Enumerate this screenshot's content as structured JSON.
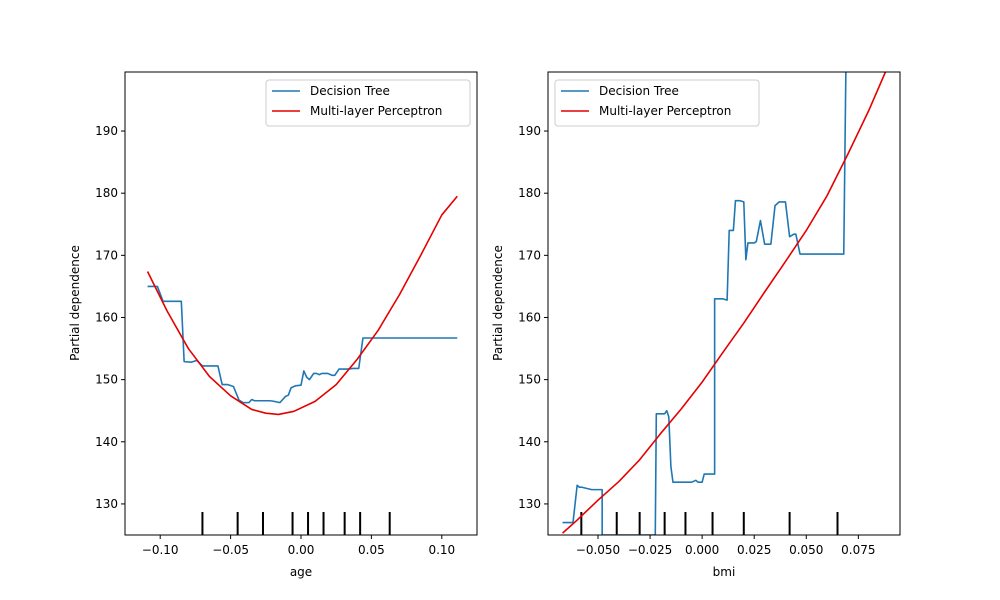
{
  "chart_data": [
    {
      "type": "line",
      "xlabel": "age",
      "ylabel": "Partial dependence",
      "xlim": [
        -0.125,
        0.125
      ],
      "ylim": [
        125,
        199.5
      ],
      "xticks": [
        -0.1,
        -0.05,
        0.0,
        0.05,
        0.1
      ],
      "xtick_labels": [
        "−0.10",
        "−0.05",
        "0.00",
        "0.05",
        "0.10"
      ],
      "yticks": [
        130,
        140,
        150,
        160,
        170,
        180,
        190
      ],
      "ytick_labels": [
        "130",
        "140",
        "150",
        "160",
        "170",
        "180",
        "190"
      ],
      "legend_position": "top-right",
      "grid": false,
      "deciles": [
        -0.07,
        -0.045,
        -0.027,
        -0.006,
        0.005,
        0.016,
        0.031,
        0.042,
        0.063
      ],
      "series": [
        {
          "name": "Decision Tree",
          "color": "#1f77b4",
          "x": [
            -0.109,
            -0.102,
            -0.098,
            -0.096,
            -0.091,
            -0.087,
            -0.085,
            -0.083,
            -0.078,
            -0.074,
            -0.07,
            -0.067,
            -0.063,
            -0.059,
            -0.056,
            -0.052,
            -0.048,
            -0.044,
            -0.041,
            -0.037,
            -0.035,
            -0.033,
            -0.03,
            -0.028,
            -0.025,
            -0.022,
            -0.019,
            -0.015,
            -0.011,
            -0.009,
            -0.007,
            -0.004,
            0.0,
            0.002,
            0.004,
            0.006,
            0.009,
            0.011,
            0.013,
            0.015,
            0.017,
            0.019,
            0.022,
            0.024,
            0.027,
            0.03,
            0.033,
            0.037,
            0.041,
            0.044,
            0.048,
            0.05,
            0.052,
            0.055,
            0.057,
            0.063,
            0.07,
            0.076,
            0.078,
            0.08,
            0.085,
            0.095,
            0.105,
            0.111
          ],
          "values": [
            165,
            165,
            162.6,
            162.6,
            162.6,
            162.6,
            162.6,
            152.9,
            152.8,
            153.1,
            152.2,
            152.2,
            152.2,
            152.2,
            149.2,
            149.2,
            148.9,
            146.7,
            146.3,
            146.3,
            146.8,
            146.6,
            146.6,
            146.6,
            146.6,
            146.6,
            146.5,
            146.3,
            147.3,
            147.5,
            148.7,
            149.0,
            149.1,
            151.4,
            150.4,
            150.0,
            151.0,
            151.0,
            150.8,
            151.0,
            151.0,
            151.0,
            150.7,
            150.7,
            151.7,
            151.7,
            151.7,
            151.8,
            151.8,
            156.7,
            156.7,
            156.7,
            156.7,
            156.7,
            156.7,
            156.7,
            156.7,
            156.7,
            156.7,
            156.7,
            156.7,
            156.7,
            156.7,
            156.7
          ]
        },
        {
          "name": "Multi-layer Perceptron",
          "color": "#e60000",
          "x": [
            -0.109,
            -0.095,
            -0.08,
            -0.065,
            -0.05,
            -0.035,
            -0.025,
            -0.016,
            -0.005,
            0.01,
            0.025,
            0.04,
            0.055,
            0.07,
            0.085,
            0.1,
            0.111
          ],
          "values": [
            167.4,
            161.0,
            155.0,
            150.5,
            147.4,
            145.2,
            144.6,
            144.4,
            144.9,
            146.5,
            149.2,
            153.3,
            158.0,
            163.7,
            170.0,
            176.5,
            179.5
          ]
        }
      ]
    },
    {
      "type": "line",
      "xlabel": "bmi",
      "ylabel": "Partial dependence",
      "xlim": [
        -0.074,
        0.095
      ],
      "ylim": [
        125,
        199.5
      ],
      "xticks": [
        -0.05,
        -0.025,
        0.0,
        0.025,
        0.05,
        0.075
      ],
      "xtick_labels": [
        "−0.050",
        "−0.025",
        "0.000",
        "0.025",
        "0.050",
        "0.075"
      ],
      "yticks": [
        130,
        140,
        150,
        160,
        170,
        180,
        190
      ],
      "ytick_labels": [
        "130",
        "140",
        "150",
        "160",
        "170",
        "180",
        "190"
      ],
      "legend_position": "top-left",
      "grid": false,
      "deciles": [
        -0.058,
        -0.041,
        -0.03,
        -0.018,
        -0.008,
        0.005,
        0.02,
        0.042,
        0.065
      ],
      "series": [
        {
          "name": "Decision Tree",
          "color": "#1f77b4",
          "x": [
            -0.067,
            -0.063,
            -0.062,
            -0.06,
            -0.059,
            -0.058,
            -0.053,
            -0.051,
            -0.05,
            -0.048,
            -0.048,
            -0.0225,
            -0.022,
            -0.019,
            -0.018,
            -0.017,
            -0.016,
            -0.015,
            -0.014,
            -0.01,
            -0.005,
            -0.003,
            -0.002,
            0.0,
            0.001,
            0.002,
            0.006,
            0.006,
            0.007,
            0.008,
            0.01,
            0.012,
            0.013,
            0.015,
            0.016,
            0.017,
            0.018,
            0.02,
            0.021,
            0.022,
            0.024,
            0.025,
            0.026,
            0.028,
            0.03,
            0.032,
            0.033,
            0.035,
            0.037,
            0.038,
            0.04,
            0.042,
            0.044,
            0.045,
            0.047,
            0.048,
            0.049,
            0.05,
            0.051,
            0.053,
            0.055,
            0.06,
            0.065,
            0.068,
            0.069,
            0.069
          ],
          "values": [
            127,
            127,
            127,
            133,
            132.7,
            132.7,
            132.3,
            132.3,
            132.3,
            132.3,
            125,
            125,
            144.5,
            144.5,
            144.5,
            145.0,
            144.0,
            136.0,
            133.5,
            133.5,
            133.5,
            133.8,
            133.5,
            133.5,
            134.8,
            134.8,
            134.8,
            163.0,
            163.0,
            163.0,
            163.0,
            162.8,
            174.0,
            174.0,
            178.8,
            178.8,
            178.8,
            178.6,
            169.3,
            172.0,
            172.0,
            172.0,
            172.2,
            175.6,
            171.8,
            171.8,
            171.8,
            178.0,
            178.6,
            178.6,
            178.6,
            173.0,
            173.4,
            173.4,
            170.2,
            170.2,
            170.2,
            170.2,
            170.2,
            170.2,
            170.2,
            170.2,
            170.2,
            170.2,
            199.5,
            199.5
          ]
        },
        {
          "name": "Multi-layer Perceptron",
          "color": "#e60000",
          "x": [
            -0.067,
            -0.06,
            -0.05,
            -0.04,
            -0.03,
            -0.02,
            -0.01,
            0.0,
            0.01,
            0.02,
            0.03,
            0.04,
            0.05,
            0.06,
            0.07,
            0.08,
            0.088
          ],
          "values": [
            125.3,
            127.4,
            130.6,
            133.6,
            137.1,
            141.3,
            145.3,
            149.6,
            154.4,
            159.1,
            164.1,
            169.0,
            174.0,
            179.6,
            186.3,
            193.3,
            199.5
          ]
        }
      ]
    }
  ]
}
